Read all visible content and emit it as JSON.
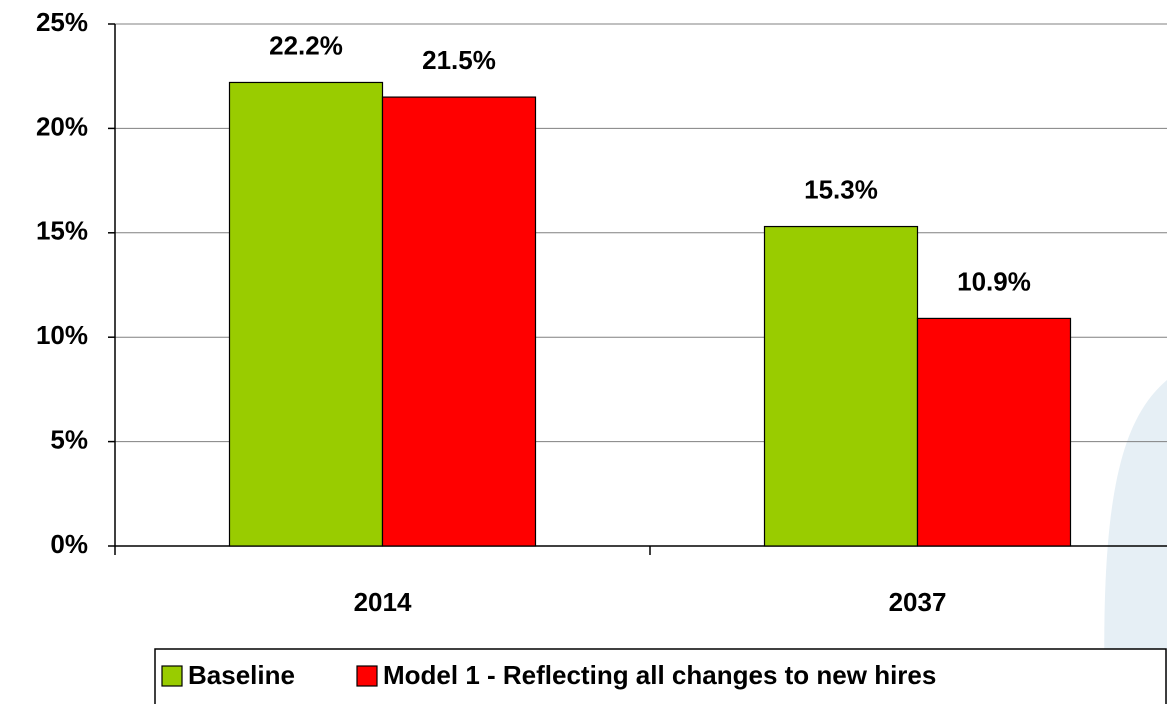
{
  "chart_data": {
    "type": "bar",
    "categories": [
      "2014",
      "2037"
    ],
    "series": [
      {
        "name": "Baseline",
        "color": "#99cc00",
        "values": [
          22.2,
          15.3
        ],
        "value_labels": [
          "22.2%",
          "15.3%"
        ]
      },
      {
        "name": "Model 1 - Reflecting all changes to new hires",
        "color": "#ff0000",
        "values": [
          21.5,
          10.9
        ],
        "value_labels": [
          "21.5%",
          "10.9%"
        ]
      }
    ],
    "ylim": [
      0,
      25
    ],
    "yticks": [
      {
        "value": 0,
        "label": "0%"
      },
      {
        "value": 5,
        "label": "5%"
      },
      {
        "value": 10,
        "label": "10%"
      },
      {
        "value": 15,
        "label": "15%"
      },
      {
        "value": 20,
        "label": "20%"
      },
      {
        "value": 25,
        "label": "25%"
      }
    ],
    "grid": true,
    "legend": "bottom"
  }
}
